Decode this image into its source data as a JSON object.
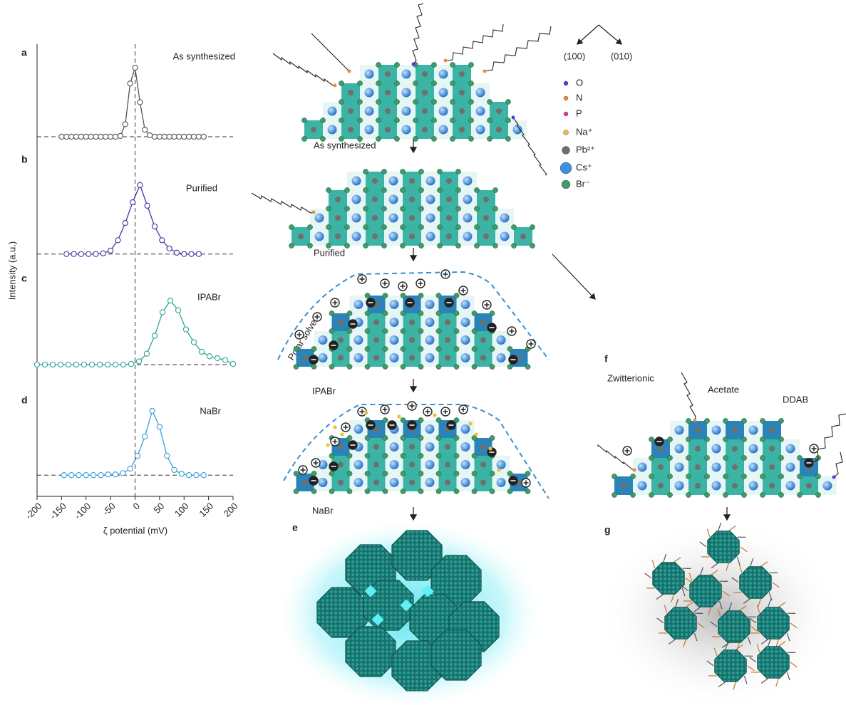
{
  "chart_data": [
    {
      "type": "line",
      "panel": "a",
      "title": "As synthesized",
      "ylabel": "Intensity (a.u.)",
      "color": "#555555",
      "x": [
        -150,
        -140,
        -130,
        -120,
        -110,
        -100,
        -90,
        -80,
        -70,
        -60,
        -50,
        -40,
        -30,
        -20,
        -10,
        0,
        10,
        20,
        30,
        40,
        50,
        60,
        70,
        80,
        90,
        100,
        110,
        120,
        130,
        140
      ],
      "values": [
        0,
        0,
        0,
        0,
        0,
        0,
        0,
        0,
        0,
        0,
        0,
        0,
        0.01,
        0.18,
        0.77,
        1.0,
        0.5,
        0.1,
        0.02,
        0,
        0,
        0,
        0,
        0,
        0,
        0,
        0,
        0,
        0,
        0
      ],
      "xlim": [
        -200,
        200
      ],
      "ylim": [
        -0.31,
        1.34
      ]
    },
    {
      "type": "line",
      "panel": "b",
      "title": "Purified",
      "color": "#3b3b9e",
      "x": [
        -140,
        -125,
        -110,
        -95,
        -80,
        -65,
        -50,
        -35,
        -20,
        -5,
        10,
        25,
        40,
        55,
        70,
        85,
        100,
        115,
        130
      ],
      "values": [
        0,
        0,
        0,
        0,
        0,
        0.01,
        0.05,
        0.2,
        0.45,
        0.75,
        1.0,
        0.7,
        0.4,
        0.2,
        0.08,
        0.02,
        0,
        0,
        0
      ],
      "xlim": [
        -200,
        200
      ],
      "ylim": [
        -0.24,
        1.39
      ]
    },
    {
      "type": "line",
      "panel": "c",
      "title": "IPABr",
      "color": "#2ea597",
      "x": [
        -200,
        -184,
        -168,
        -152,
        -136,
        -120,
        -104,
        -88,
        -72,
        -56,
        -40,
        -24,
        -8,
        8,
        24,
        40,
        56,
        72,
        88,
        104,
        120,
        136,
        152,
        168,
        184,
        200
      ],
      "values": [
        0,
        0,
        0,
        0,
        0,
        0,
        0,
        0,
        0,
        0,
        0,
        0,
        0.01,
        0.05,
        0.17,
        0.45,
        0.82,
        1.0,
        0.85,
        0.55,
        0.35,
        0.2,
        0.13,
        0.1,
        0.07,
        0.01
      ],
      "xlim": [
        -200,
        200
      ],
      "ylim": [
        -0.29,
        1.47
      ]
    },
    {
      "type": "line",
      "panel": "d",
      "title": "NaBr",
      "color": "#3a9fd9",
      "x": [
        -145,
        -130,
        -115,
        -100,
        -85,
        -70,
        -55,
        -40,
        -25,
        -10,
        5,
        20,
        35,
        50,
        65,
        80,
        95,
        110,
        125,
        140
      ],
      "values": [
        0,
        0,
        0,
        0,
        0,
        0,
        0.01,
        0.01,
        0.03,
        0.1,
        0.3,
        0.6,
        1.0,
        0.75,
        0.3,
        0.08,
        0.02,
        0,
        0,
        0
      ],
      "xlim": [
        -200,
        200
      ],
      "ylim": [
        -0.33,
        1.43
      ],
      "xticks": [
        -200,
        -150,
        -100,
        -50,
        0,
        50,
        100,
        150,
        200
      ],
      "xlabel": "ζ potential (mV)"
    }
  ],
  "diagram": {
    "directions": [
      "(100)",
      "(010)"
    ],
    "legend": [
      {
        "label": "O",
        "color": "#4b3fd0"
      },
      {
        "label": "N",
        "color": "#f08a3c"
      },
      {
        "label": "P",
        "color": "#e0339a"
      },
      {
        "label": "Na⁺",
        "color": "#e8c23a"
      },
      {
        "label": "Pb²⁺",
        "color": "#6f6f6f"
      },
      {
        "label": "Cs⁺",
        "color": "#3d8fe0"
      },
      {
        "label": "Br⁻",
        "color": "#3f9c6a"
      }
    ],
    "stages": [
      "As synthesized",
      "Purified",
      "IPABr",
      "NaBr"
    ],
    "solvent": "Polar solvent",
    "panel_e": "e",
    "panel_f": "f",
    "panel_g": "g",
    "ligands": [
      "Zwitterionic",
      "Acetate",
      "DDAB"
    ]
  }
}
